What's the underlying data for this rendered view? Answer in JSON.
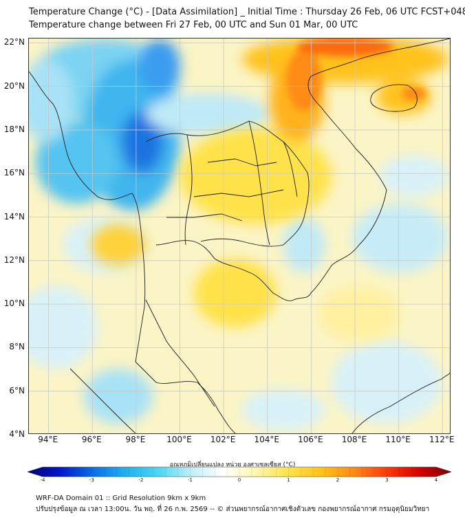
{
  "title": {
    "line1": "Temperature Change (°C) - [Data Assimilation] _ Initial Time : Thursday 26 Feb, 06 UTC FCST+048",
    "line2": "Temperature change between Fri 27 Feb, 00 UTC and Sun 01 Mar, 00 UTC"
  },
  "axes": {
    "lat_labels": [
      "22°N",
      "20°N",
      "18°N",
      "16°N",
      "14°N",
      "12°N",
      "10°N",
      "8°N",
      "6°N",
      "4°N"
    ],
    "lon_labels": [
      "94°E",
      "96°E",
      "98°E",
      "100°E",
      "102°E",
      "104°E",
      "106°E",
      "108°E",
      "110°E",
      "112°E"
    ],
    "lat_values": [
      22,
      20,
      18,
      16,
      14,
      12,
      10,
      8,
      6,
      4
    ],
    "lon_values": [
      94,
      96,
      98,
      100,
      102,
      104,
      106,
      108,
      110,
      112
    ],
    "lat_range": [
      4,
      22.2
    ],
    "lon_range": [
      93.1,
      112.4
    ]
  },
  "colorbar": {
    "label": "อุณหภูมิเปลี่ยนแปลง หน่วย องศาเซลเซียส (°C)",
    "range": [
      -4,
      4
    ],
    "tick_labels": [
      "-4",
      "-3",
      "-2",
      "-1",
      "0",
      "1",
      "2",
      "3",
      "4"
    ],
    "tick_values": [
      -4,
      -3,
      -2,
      -1,
      0,
      1,
      2,
      3,
      4
    ],
    "colors": [
      "#00007a",
      "#0018c8",
      "#0a6ee6",
      "#1fb0f0",
      "#4ad6f5",
      "#bfeef8",
      "#ffffff",
      "#fff6b0",
      "#ffe24a",
      "#ffc21a",
      "#ff8a14",
      "#ff3b0a",
      "#d80000",
      "#7a0000"
    ]
  },
  "footer": {
    "line1": "WRF-DA Domain 01 :: Grid Resolution 9km x 9km",
    "line2": "ปรับปรุงข้อมูล ณ เวลา 13:00น. วัน พฤ. ที่ 26 ก.พ. 2569 -- © ส่วนพยากรณ์อากาศเชิงตัวเลข กองพยากรณ์อากาศ กรมอุตุนิยมวิทยา"
  }
}
